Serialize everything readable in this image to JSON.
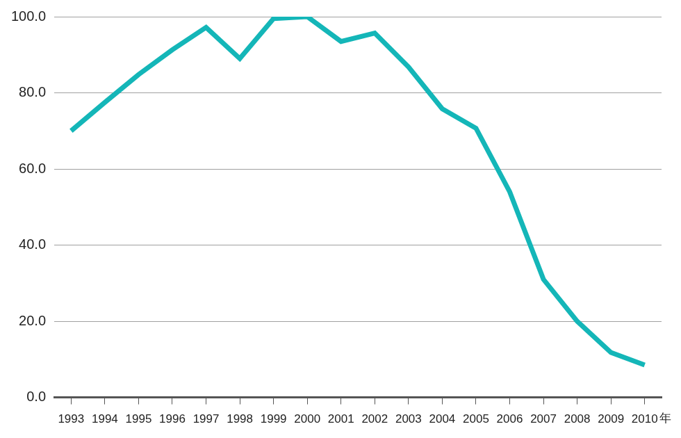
{
  "chart_data": {
    "type": "line",
    "categories": [
      "1993",
      "1994",
      "1995",
      "1996",
      "1997",
      "1998",
      "1999",
      "2000",
      "2001",
      "2002",
      "2003",
      "2004",
      "2005",
      "2006",
      "2007",
      "2008",
      "2009",
      "2010"
    ],
    "values": [
      70.0,
      77.5,
      84.8,
      91.3,
      97.2,
      89.0,
      99.5,
      100.0,
      93.5,
      95.7,
      86.8,
      75.8,
      70.7,
      54.0,
      31.0,
      20.0,
      11.8,
      8.5
    ],
    "x_label": "年",
    "color": "#14b6b8",
    "ylim": [
      0,
      100
    ],
    "yticks": [
      {
        "value": 0,
        "label": "0.0"
      },
      {
        "value": 20,
        "label": "20.0"
      },
      {
        "value": 40,
        "label": "40.0"
      },
      {
        "value": 60,
        "label": "60.0"
      },
      {
        "value": 80,
        "label": "80.0"
      },
      {
        "value": 100,
        "label": "100.0"
      }
    ],
    "grid": true
  }
}
